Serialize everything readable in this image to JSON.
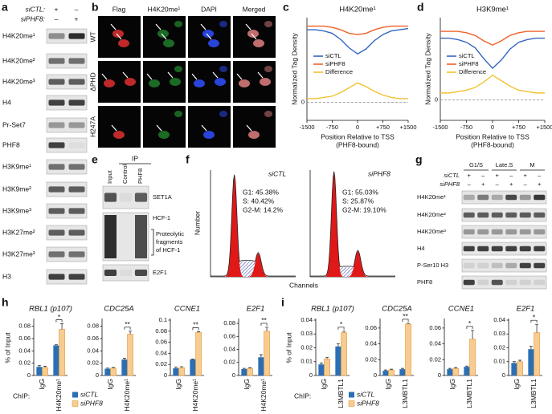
{
  "panel_a": {
    "label": "a",
    "conditions": [
      {
        "name": "siCTL:",
        "signs": [
          "+",
          "–"
        ]
      },
      {
        "name": "siPHF8:",
        "signs": [
          "–",
          "+"
        ]
      }
    ],
    "rows": [
      "H4K20me¹",
      "H4K20me²",
      "H4K20me³",
      "H4",
      "Pr-Set7",
      "PHF8",
      "H3K9me¹",
      "H3K9me²",
      "H3K9me³",
      "H3K27me²",
      "H3K27me³",
      "H3"
    ]
  },
  "panel_b": {
    "label": "b",
    "columns": [
      "Flag",
      "H4K20me¹",
      "DAPI",
      "Merged"
    ],
    "rows": [
      "WT",
      "ΔPHD",
      "H247A"
    ]
  },
  "panel_e": {
    "label": "e",
    "header": "IP",
    "lanes": [
      "Input",
      "Control",
      "PHF8"
    ],
    "bands": [
      "SET1A",
      "HCF-1",
      "E2F1"
    ],
    "note": [
      "Proteolytic",
      "fragments",
      "of HCF-1"
    ]
  },
  "panel_f": {
    "label": "f",
    "ylabel": "Number",
    "xlabel": "Channels",
    "plots": [
      {
        "title": "siCTL",
        "stats": [
          "G1: 45.38%",
          "S: 40.42%",
          "G2-M: 14.2%"
        ]
      },
      {
        "title": "siPHF8",
        "stats": [
          "G1: 55.03%",
          "S: 25.87%",
          "G2-M: 19.10%"
        ]
      }
    ]
  },
  "panel_g": {
    "label": "g",
    "phases": [
      "G1/S",
      "Late.S",
      "M"
    ],
    "conditions": [
      {
        "name": "siCTL",
        "signs": [
          "+",
          "–",
          "+",
          "–",
          "+",
          "–"
        ]
      },
      {
        "name": "siPHF8",
        "signs": [
          "–",
          "+",
          "–",
          "+",
          "–",
          "+"
        ]
      }
    ],
    "rows": [
      "H4K20me¹",
      "H4K20me²",
      "H4K20me³",
      "H4",
      "P-Ser10 H3",
      "PHF8"
    ]
  },
  "chart_data": [
    {
      "type": "line",
      "label": "c",
      "title": "H4K20me¹",
      "ylabel": "Normalized Tag Density",
      "xlabel": "Position Relative to TSS",
      "xlabel_note": "(PHF8-bound)",
      "x": [
        -1500,
        -1250,
        -1000,
        -750,
        -500,
        -250,
        0,
        250,
        500,
        750,
        1000,
        1250,
        1500
      ],
      "xlim": [
        -1500,
        1500
      ],
      "xticks": [
        -1500,
        -750,
        0,
        {
          "value": 750,
          "label": "+750"
        },
        {
          "value": 1500,
          "label": "+1500"
        }
      ],
      "ylim": [
        -1.5,
        7
      ],
      "yticks": [
        0
      ],
      "series": [
        {
          "name": "siCTL",
          "color": "#3566c0",
          "values": [
            6.0,
            6.0,
            5.9,
            5.7,
            5.2,
            4.5,
            4.0,
            4.4,
            5.1,
            5.6,
            5.9,
            6.0,
            6.1
          ]
        },
        {
          "name": "siPHF8",
          "color": "#f0602a",
          "values": [
            6.3,
            6.3,
            6.3,
            6.2,
            6.0,
            5.7,
            5.6,
            5.7,
            6.0,
            6.2,
            6.3,
            6.3,
            6.3
          ]
        },
        {
          "name": "Difference",
          "color": "#f2c230",
          "values": [
            0.3,
            0.3,
            0.4,
            0.5,
            0.8,
            1.2,
            1.6,
            1.3,
            0.9,
            0.6,
            0.4,
            0.3,
            0.3
          ]
        }
      ]
    },
    {
      "type": "line",
      "label": "d",
      "title": "H3K9me¹",
      "ylabel": "Normalized Tag Density",
      "xlabel": "Position Relative to TSS",
      "xlabel_note": "(PHF8-bound)",
      "x": [
        -1500,
        -1250,
        -1000,
        -750,
        -500,
        -250,
        0,
        250,
        500,
        750,
        1000,
        1250,
        1500
      ],
      "xlim": [
        -1500,
        1500
      ],
      "xticks": [
        -1500,
        -750,
        0,
        {
          "value": 750,
          "label": "+750"
        },
        {
          "value": 1500,
          "label": "+1500"
        }
      ],
      "ylim": [
        -1.5,
        6
      ],
      "yticks": [
        0
      ],
      "series": [
        {
          "name": "siCTL",
          "color": "#3566c0",
          "values": [
            4.5,
            4.5,
            4.4,
            4.2,
            3.8,
            3.0,
            2.3,
            2.9,
            3.7,
            4.2,
            4.4,
            4.5,
            4.5
          ]
        },
        {
          "name": "siPHF8",
          "color": "#f0602a",
          "values": [
            5.0,
            5.0,
            5.0,
            4.9,
            4.7,
            4.3,
            4.0,
            4.3,
            4.7,
            4.9,
            5.0,
            5.0,
            5.0
          ]
        },
        {
          "name": "Difference",
          "color": "#f2c230",
          "values": [
            0.5,
            0.5,
            0.6,
            0.7,
            0.9,
            1.3,
            1.8,
            1.4,
            1.0,
            0.7,
            0.6,
            0.5,
            0.5
          ]
        }
      ]
    },
    {
      "type": "bar-panels",
      "label": "h",
      "ylabel": "% of Input",
      "xlabel": "ChIP:",
      "series": [
        {
          "name": "siCTL",
          "color": "#2a6fb5"
        },
        {
          "name": "siPHF8",
          "color": "#f8cc90"
        }
      ],
      "panels": [
        {
          "title": "RBL1 (p107)",
          "categories": [
            "IgG",
            "H4K20me¹"
          ],
          "ylim": [
            0,
            0.09
          ],
          "yticks": [
            0,
            0.02,
            0.04,
            0.06,
            0.08
          ],
          "values": [
            [
              0.014,
              0.049
            ],
            [
              0.013,
              0.075
            ]
          ],
          "errors": [
            [
              0.002,
              0.001
            ],
            [
              0.002,
              0.009
            ]
          ],
          "significance": "*"
        },
        {
          "title": "CDC25A",
          "categories": [
            "IgG",
            "H4K20me¹"
          ],
          "ylim": [
            0,
            0.09
          ],
          "yticks": [
            0,
            0.02,
            0.04,
            0.06,
            0.08
          ],
          "values": [
            [
              0.011,
              0.026
            ],
            [
              0.012,
              0.067
            ]
          ],
          "errors": [
            [
              0.001,
              0.002
            ],
            [
              0.001,
              0.005
            ]
          ],
          "significance": "**"
        },
        {
          "title": "CCNE1",
          "categories": [
            "IgG",
            "H4K20me¹"
          ],
          "ylim": [
            0,
            0.1
          ],
          "yticks": [
            0,
            0.02,
            0.04,
            0.06,
            0.08,
            0.1
          ],
          "values": [
            [
              0.013,
              0.029
            ],
            [
              0.014,
              0.078
            ]
          ],
          "errors": [
            [
              0.002,
              0.001
            ],
            [
              0.002,
              0.001
            ]
          ],
          "significance": "**"
        },
        {
          "title": "E2F1",
          "categories": [
            "IgG",
            "H4K20me¹"
          ],
          "ylim": [
            0,
            0.085
          ],
          "yticks": [
            0,
            0.02,
            0.04,
            0.06,
            0.08
          ],
          "values": [
            [
              0.01,
              0.028
            ],
            [
              0.011,
              0.068
            ]
          ],
          "errors": [
            [
              0.001,
              0.004
            ],
            [
              0.001,
              0.006
            ]
          ],
          "significance": "**"
        }
      ]
    },
    {
      "type": "bar-panels",
      "label": "i",
      "ylabel": "% of Input",
      "xlabel": "ChIP:",
      "series": [
        {
          "name": "siCTL",
          "color": "#2a6fb5"
        },
        {
          "name": "siPHF8",
          "color": "#f8cc90"
        }
      ],
      "panels": [
        {
          "title": "RBL1 (p107)",
          "categories": [
            "IgG",
            "L3MBTL1"
          ],
          "ylim": [
            0,
            0.04
          ],
          "yticks": [
            0,
            0.01,
            0.02,
            0.03,
            0.04
          ],
          "values": [
            [
              0.008,
              0.021
            ],
            [
              0.012,
              0.031
            ]
          ],
          "errors": [
            [
              0.001,
              0.002
            ],
            [
              0.001,
              0.001
            ]
          ],
          "significance": "*"
        },
        {
          "title": "CDC25A",
          "categories": [
            "IgG",
            "L3MBTL1"
          ],
          "ylim": [
            0,
            0.07
          ],
          "yticks": [
            0,
            0.02,
            0.04,
            0.06
          ],
          "values": [
            [
              0.006,
              0.008
            ],
            [
              0.007,
              0.065
            ]
          ],
          "errors": [
            [
              0.001,
              0.001
            ],
            [
              0.001,
              0.001
            ]
          ],
          "significance": "**"
        },
        {
          "title": "CCNE1",
          "categories": [
            "IgG",
            "L3MBTL1"
          ],
          "ylim": [
            0,
            0.07
          ],
          "yticks": [
            0,
            0.02,
            0.04,
            0.06
          ],
          "values": [
            [
              0.008,
              0.011
            ],
            [
              0.009,
              0.046
            ]
          ],
          "errors": [
            [
              0.001,
              0.001
            ],
            [
              0.001,
              0.011
            ]
          ],
          "significance": "*"
        },
        {
          "title": "E2F1",
          "categories": [
            "IgG",
            "L3MBTL1"
          ],
          "ylim": [
            0,
            0.04
          ],
          "yticks": [
            0,
            0.01,
            0.02,
            0.03,
            0.04
          ],
          "values": [
            [
              0.009,
              0.019
            ],
            [
              0.01,
              0.031
            ]
          ],
          "errors": [
            [
              0.001,
              0.002
            ],
            [
              0.001,
              0.006
            ]
          ],
          "significance": "*"
        }
      ]
    }
  ]
}
